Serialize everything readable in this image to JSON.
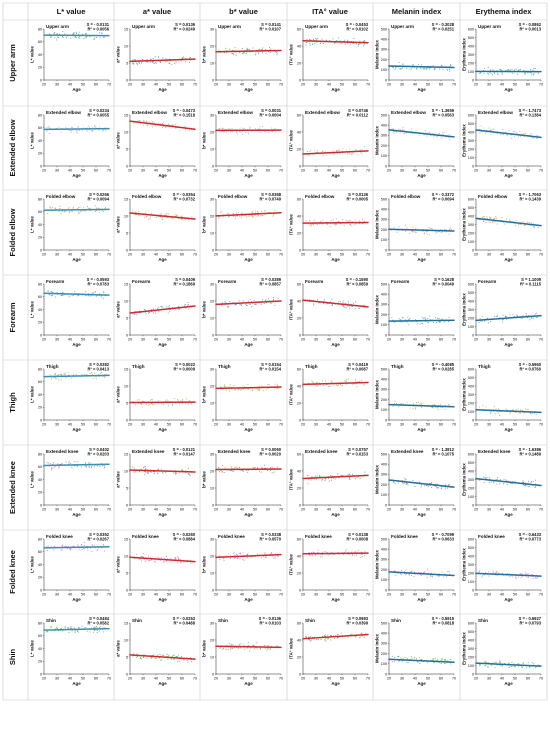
{
  "columns": [
    "L* value",
    "a* value",
    "b* value",
    "ITA° value",
    "Melanin index",
    "Erythema index"
  ],
  "rows": [
    "Upper arm",
    "Extended elbow",
    "Folded elbow",
    "Forearm",
    "Thigh",
    "Extended knee",
    "Folded knee",
    "Shin"
  ],
  "colors": {
    "grid": "#c7c7c7",
    "row_points": [
      "#47a9a3",
      "#b8b8b8",
      "#c9a27a",
      "#6fa1c2",
      "#b9b06b",
      "#8d8d8d",
      "#d488c4",
      "#64b568"
    ],
    "lines": {
      "L* value": "#3a8fb8",
      "a* value": "#cf2b2b",
      "b* value": "#cf2b2b",
      "ITA° value": "#cf2b2b",
      "Melanin index": "#20709e",
      "Erythema index": "#20709e"
    }
  },
  "axes": {
    "x_ticks": [
      20,
      30,
      40,
      50,
      60,
      70
    ],
    "x_label": "Age",
    "y_ticks": {
      "L* value": [
        0,
        20,
        40,
        60,
        80
      ],
      "a* value": [
        0,
        5,
        10,
        15
      ],
      "b* value": [
        0,
        10,
        20,
        30
      ],
      "ITA° value": [
        0,
        20,
        40,
        60
      ],
      "Melanin index": [
        0,
        100,
        200,
        300,
        400,
        500
      ],
      "Erythema index": [
        0,
        100,
        200,
        300,
        400,
        500,
        600
      ]
    },
    "y_labels": {
      "L* value": "L* value",
      "a* value": "a* value",
      "b* value": "b* value",
      "ITA° value": "ITA° value",
      "Melanin index": "Melanin index",
      "Erythema index": "Erythema index"
    }
  },
  "chart_data": {
    "type": "scatter",
    "x_range": [
      20,
      70
    ],
    "note": "Panel grid: rows = body sites, columns = colour parameters; each panel shows individual points versus age with a linear regression line.",
    "panels": [
      [
        {
          "title": "Upper arm",
          "S": "S = - 0.0131",
          "R2": "R² = 0.0056",
          "slope": -0.0131,
          "mid": 70
        },
        {
          "title": "Upper arm",
          "S": "S = 0.0136",
          "R2": "R² = 0.0249",
          "slope": 0.0136,
          "mid": 5.8
        },
        {
          "title": "Upper arm",
          "S": "S = 0.0141",
          "R2": "R² = 0.0107",
          "slope": 0.0141,
          "mid": 17
        },
        {
          "title": "Upper arm",
          "S": "S = - 0.0453",
          "R2": "R² = 0.0102",
          "slope": -0.0453,
          "mid": 45
        },
        {
          "title": "Upper arm",
          "S": "S = - 0.3028",
          "R2": "R² = 0.0251",
          "slope": -0.3028,
          "mid": 130
        },
        {
          "title": "Upper arm",
          "S": "S = - 0.0862",
          "R2": "R² = 0.0013",
          "slope": -0.0862,
          "mid": 100
        }
      ],
      [
        {
          "title": "Extended elbow",
          "S": "S = 0.0234",
          "R2": "R² = 0.0055",
          "slope": 0.0234,
          "mid": 58
        },
        {
          "title": "Extended elbow",
          "S": "S = - 0.0473",
          "R2": "R² = 0.1518",
          "slope": -0.0473,
          "mid": 12
        },
        {
          "title": "Extended elbow",
          "S": "S = 0.0031",
          "R2": "R² = 0.0004",
          "slope": 0.0031,
          "mid": 21
        },
        {
          "title": "Extended elbow",
          "S": "S = 0.0746",
          "R2": "R² = 0.0112",
          "slope": 0.0746,
          "mid": 16
        },
        {
          "title": "Extended elbow",
          "S": "S = - 1.3659",
          "R2": "R² = 0.0563",
          "slope": -1.3659,
          "mid": 320
        },
        {
          "title": "Extended elbow",
          "S": "S = - 1.7473",
          "R2": "R² = 0.1384",
          "slope": -1.7473,
          "mid": 380
        }
      ],
      [
        {
          "title": "Folded elbow",
          "S": "S = 0.0266",
          "R2": "R² = 0.0094",
          "slope": 0.0266,
          "mid": 63
        },
        {
          "title": "Folded elbow",
          "S": "S = - 0.0354",
          "R2": "R² = 0.0732",
          "slope": -0.0354,
          "mid": 10
        },
        {
          "title": "Folded elbow",
          "S": "S = 0.0368",
          "R2": "R² = 0.0749",
          "slope": 0.0368,
          "mid": 21
        },
        {
          "title": "Folded elbow",
          "S": "S = 0.0126",
          "R2": "R² = 0.0005",
          "slope": 0.0126,
          "mid": 32
        },
        {
          "title": "Folded elbow",
          "S": "S = - 0.3372",
          "R2": "R² = 0.0094",
          "slope": -0.3372,
          "mid": 195
        },
        {
          "title": "Folded elbow",
          "S": "S = - 1.7063",
          "R2": "R² = 0.1439",
          "slope": -1.7063,
          "mid": 330
        }
      ],
      [
        {
          "title": "Forearm",
          "S": "S = - 0.0593",
          "R2": "R² = 0.0783",
          "slope": -0.0593,
          "mid": 64
        },
        {
          "title": "Forearm",
          "S": "S = 0.0409",
          "R2": "R² = 0.1869",
          "slope": 0.0409,
          "mid": 7.5
        },
        {
          "title": "Forearm",
          "S": "S = 0.0389",
          "R2": "R² = 0.0857",
          "slope": 0.0389,
          "mid": 19
        },
        {
          "title": "Forearm",
          "S": "S = - 0.1590",
          "R2": "R² = 0.0859",
          "slope": -0.159,
          "mid": 37
        },
        {
          "title": "Forearm",
          "S": "S = 0.1628",
          "R2": "R² = 0.0049",
          "slope": 0.1628,
          "mid": 140
        },
        {
          "title": "Forearm",
          "S": "S = 1.1009",
          "R2": "R² = 0.1115",
          "slope": 1.1009,
          "mid": 200
        }
      ],
      [
        {
          "title": "Thigh",
          "S": "S = 0.0382",
          "R2": "R² = 0.0413",
          "slope": 0.0382,
          "mid": 69
        },
        {
          "title": "Thigh",
          "S": "S = 0.0022",
          "R2": "R² = 0.0009",
          "slope": 0.0022,
          "mid": 5.2
        },
        {
          "title": "Thigh",
          "S": "S = 0.0154",
          "R2": "R² = 0.0154",
          "slope": 0.0154,
          "mid": 19
        },
        {
          "title": "Thigh",
          "S": "S = 0.0419",
          "R2": "R² = 0.0087",
          "slope": 0.0419,
          "mid": 43
        },
        {
          "title": "Thigh",
          "S": "S = - 0.4085",
          "R2": "R² = 0.0285",
          "slope": -0.4085,
          "mid": 140
        },
        {
          "title": "Thigh",
          "S": "S = - 0.5960",
          "R2": "R² = 0.0760",
          "slope": -0.596,
          "mid": 105
        }
      ],
      [
        {
          "title": "Extended knee",
          "S": "S = 0.0402",
          "R2": "R² = 0.0203",
          "slope": 0.0402,
          "mid": 63
        },
        {
          "title": "Extended knee",
          "S": "S = - 0.0121",
          "R2": "R² = 0.0147",
          "slope": -0.0121,
          "mid": 10
        },
        {
          "title": "Extended knee",
          "S": "S = 0.0060",
          "R2": "R² = 0.0020",
          "slope": 0.006,
          "mid": 21
        },
        {
          "title": "Extended knee",
          "S": "S = 0.0757",
          "R2": "R² = 0.0153",
          "slope": 0.0757,
          "mid": 33
        },
        {
          "title": "Extended knee",
          "S": "S = - 1.3812",
          "R2": "R² = 0.1075",
          "slope": -1.3812,
          "mid": 210
        },
        {
          "title": "Extended knee",
          "S": "S = - 1.6386",
          "R2": "R² = 0.1489",
          "slope": -1.6386,
          "mid": 270
        }
      ],
      [
        {
          "title": "Folded knee",
          "S": "S = 0.0352",
          "R2": "R² = 0.0267",
          "slope": 0.0352,
          "mid": 67
        },
        {
          "title": "Folded knee",
          "S": "S = - 0.0260",
          "R2": "R² = 0.0884",
          "slope": -0.026,
          "mid": 9
        },
        {
          "title": "Folded knee",
          "S": "S = 0.0338",
          "R2": "R² = 0.0570",
          "slope": 0.0338,
          "mid": 20
        },
        {
          "title": "Folded knee",
          "S": "S = 0.0138",
          "R2": "R² = 0.0008",
          "slope": 0.0138,
          "mid": 43
        },
        {
          "title": "Folded knee",
          "S": "S = - 0.7099",
          "R2": "R² = 0.0633",
          "slope": -0.7099,
          "mid": 160
        },
        {
          "title": "Folded knee",
          "S": "S = - 0.6433",
          "R2": "R² = 0.0773",
          "slope": -0.6433,
          "mid": 180
        }
      ],
      [
        {
          "title": "Shin",
          "S": "S = 0.0484",
          "R2": "R² = 0.0582",
          "slope": 0.0484,
          "mid": 70
        },
        {
          "title": "Shin",
          "S": "S = - 0.0253",
          "R2": "R² = 0.0488",
          "slope": -0.0253,
          "mid": 5
        },
        {
          "title": "Shin",
          "S": "S = - 0.0136",
          "R2": "R² = 0.0103",
          "slope": -0.0136,
          "mid": 16
        },
        {
          "title": "Shin",
          "S": "S = 0.0983",
          "R2": "R² = 0.0399",
          "slope": 0.0983,
          "mid": 44
        },
        {
          "title": "Shin",
          "S": "S = - 0.5915",
          "R2": "R² = 0.0818",
          "slope": -0.5915,
          "mid": 130
        },
        {
          "title": "Shin",
          "S": "S = - 0.6927",
          "R2": "R² = 0.0793",
          "slope": -0.6927,
          "mid": 110
        }
      ]
    ]
  }
}
